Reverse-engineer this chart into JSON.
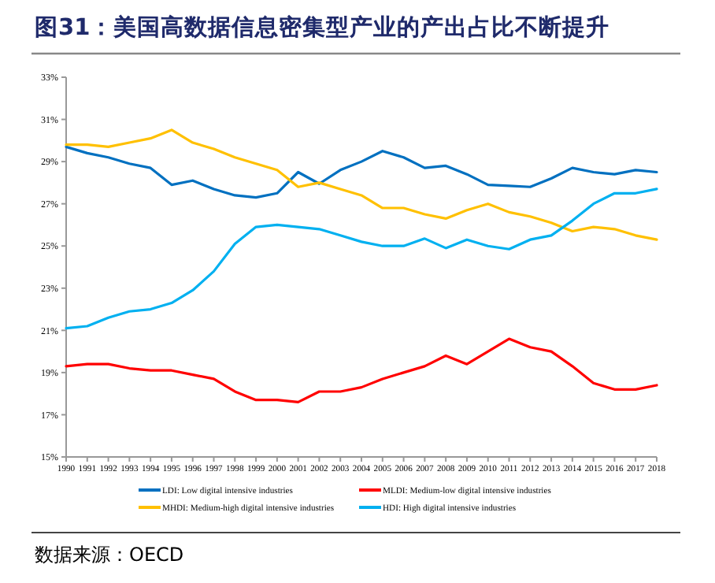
{
  "chart_data": {
    "type": "line",
    "title": "图31：美国高数据信息密集型产业的产出占比不断提升",
    "categories": [
      "1990",
      "1991",
      "1992",
      "1993",
      "1994",
      "1995",
      "1996",
      "1997",
      "1998",
      "1999",
      "2000",
      "2001",
      "2002",
      "2003",
      "2004",
      "2005",
      "2006",
      "2007",
      "2008",
      "2009",
      "2010",
      "2011",
      "2012",
      "2013",
      "2014",
      "2015",
      "2016",
      "2017",
      "2018"
    ],
    "series": [
      {
        "name": "LDI: Low digital intensive industries",
        "color": "#0070c0",
        "values": [
          29.7,
          29.4,
          29.2,
          28.9,
          28.7,
          27.9,
          28.1,
          27.7,
          27.4,
          27.3,
          27.5,
          28.5,
          27.95,
          28.6,
          29.0,
          29.5,
          29.2,
          28.7,
          28.8,
          28.4,
          27.9,
          27.85,
          27.8,
          28.2,
          28.7,
          28.5,
          28.4,
          28.6,
          28.5
        ]
      },
      {
        "name": "MLDI: Medium-low digital intensive industries",
        "color": "#ff0000",
        "values": [
          19.3,
          19.4,
          19.4,
          19.2,
          19.1,
          19.1,
          18.9,
          18.7,
          18.1,
          17.7,
          17.7,
          17.6,
          18.1,
          18.1,
          18.3,
          18.7,
          19.0,
          19.3,
          19.8,
          19.4,
          20.0,
          20.6,
          20.2,
          20.0,
          19.3,
          18.5,
          18.2,
          18.2,
          18.4
        ]
      },
      {
        "name": "MHDI: Medium-high digital intensive industries",
        "color": "#ffc000",
        "values": [
          29.8,
          29.8,
          29.7,
          29.9,
          30.1,
          30.5,
          29.9,
          29.6,
          29.2,
          28.9,
          28.6,
          27.8,
          28.0,
          27.7,
          27.4,
          26.8,
          26.8,
          26.5,
          26.3,
          26.7,
          27.0,
          26.6,
          26.4,
          26.1,
          25.7,
          25.9,
          25.8,
          25.5,
          25.3
        ]
      },
      {
        "name": "HDI: High digital intensive industries",
        "color": "#00b0f0",
        "values": [
          21.1,
          21.2,
          21.6,
          21.9,
          22.0,
          22.3,
          22.9,
          23.8,
          25.1,
          25.9,
          26.0,
          25.9,
          25.8,
          25.5,
          25.2,
          25.0,
          25.0,
          25.35,
          24.9,
          25.3,
          25.0,
          24.85,
          25.3,
          25.5,
          26.2,
          27.0,
          27.5,
          27.5,
          27.7
        ]
      }
    ],
    "ylim": [
      15,
      33
    ],
    "yticks": [
      {
        "value": 15,
        "label": "15%"
      },
      {
        "value": 17,
        "label": "17%"
      },
      {
        "value": 19,
        "label": "19%"
      },
      {
        "value": 21,
        "label": "21%"
      },
      {
        "value": 23,
        "label": "23%"
      },
      {
        "value": 25,
        "label": "25%"
      },
      {
        "value": 27,
        "label": "27%"
      },
      {
        "value": 29,
        "label": "29%"
      },
      {
        "value": 31,
        "label": "31%"
      },
      {
        "value": 33,
        "label": "33%"
      }
    ],
    "grid": false,
    "legend": "bottom",
    "marker": "none",
    "line_style": "solid",
    "annotations": [
      "数据来源：OECD"
    ]
  }
}
